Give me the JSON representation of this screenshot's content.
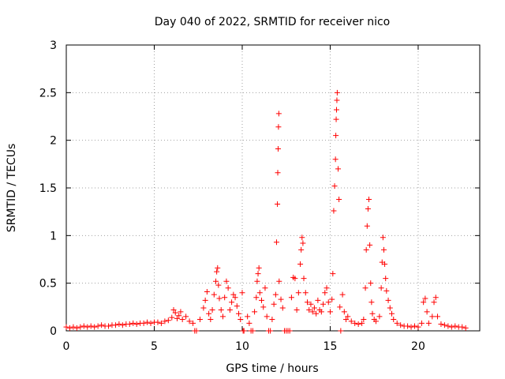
{
  "chart_data": {
    "type": "scatter",
    "title": "Day 040 of 2022, SRMTID for receiver nico",
    "xlabel": "GPS time / hours",
    "ylabel": "SRMTID / TECUs",
    "xlim": [
      0,
      23.5
    ],
    "ylim": [
      0,
      3
    ],
    "xticks": [
      0,
      5,
      10,
      15,
      20
    ],
    "yticks": [
      0,
      0.5,
      1,
      1.5,
      2,
      2.5,
      3
    ],
    "xtick_labels": [
      "0",
      "5",
      "10",
      "15",
      "20"
    ],
    "ytick_labels": [
      "0",
      "0.5",
      "1",
      "1.5",
      "2",
      "2.5",
      "3"
    ],
    "grid": true,
    "marker": "+",
    "color": "#ff0000",
    "series": [
      {
        "name": "SRMTID",
        "points": [
          [
            0.0,
            0.04
          ],
          [
            0.2,
            0.03
          ],
          [
            0.4,
            0.04
          ],
          [
            0.6,
            0.03
          ],
          [
            0.8,
            0.04
          ],
          [
            1.0,
            0.05
          ],
          [
            1.2,
            0.04
          ],
          [
            1.4,
            0.05
          ],
          [
            1.6,
            0.04
          ],
          [
            1.8,
            0.05
          ],
          [
            2.0,
            0.06
          ],
          [
            2.2,
            0.05
          ],
          [
            2.4,
            0.05
          ],
          [
            2.6,
            0.06
          ],
          [
            2.8,
            0.06
          ],
          [
            3.0,
            0.07
          ],
          [
            3.2,
            0.06
          ],
          [
            3.4,
            0.07
          ],
          [
            3.6,
            0.07
          ],
          [
            3.8,
            0.08
          ],
          [
            4.0,
            0.07
          ],
          [
            4.2,
            0.08
          ],
          [
            4.4,
            0.08
          ],
          [
            4.6,
            0.09
          ],
          [
            4.8,
            0.08
          ],
          [
            5.0,
            0.09
          ],
          [
            5.2,
            0.09
          ],
          [
            5.4,
            0.08
          ],
          [
            5.6,
            0.1
          ],
          [
            5.8,
            0.11
          ],
          [
            6.0,
            0.14
          ],
          [
            6.1,
            0.22
          ],
          [
            6.2,
            0.19
          ],
          [
            6.3,
            0.13
          ],
          [
            6.4,
            0.16
          ],
          [
            6.5,
            0.2
          ],
          [
            6.6,
            0.12
          ],
          [
            6.8,
            0.15
          ],
          [
            7.0,
            0.1
          ],
          [
            7.2,
            0.08
          ],
          [
            7.3,
            0.0
          ],
          [
            7.4,
            0.0
          ],
          [
            7.6,
            0.12
          ],
          [
            7.8,
            0.24
          ],
          [
            7.9,
            0.32
          ],
          [
            8.0,
            0.41
          ],
          [
            8.1,
            0.18
          ],
          [
            8.2,
            0.12
          ],
          [
            8.3,
            0.22
          ],
          [
            8.4,
            0.38
          ],
          [
            8.5,
            0.52
          ],
          [
            8.55,
            0.62
          ],
          [
            8.6,
            0.66
          ],
          [
            8.65,
            0.48
          ],
          [
            8.7,
            0.34
          ],
          [
            8.8,
            0.22
          ],
          [
            8.9,
            0.15
          ],
          [
            9.0,
            0.35
          ],
          [
            9.1,
            0.52
          ],
          [
            9.2,
            0.45
          ],
          [
            9.3,
            0.22
          ],
          [
            9.4,
            0.3
          ],
          [
            9.5,
            0.38
          ],
          [
            9.6,
            0.35
          ],
          [
            9.7,
            0.26
          ],
          [
            9.8,
            0.18
          ],
          [
            9.9,
            0.12
          ],
          [
            10.0,
            0.4
          ],
          [
            10.05,
            0.0
          ],
          [
            10.1,
            0.0
          ],
          [
            10.3,
            0.15
          ],
          [
            10.4,
            0.08
          ],
          [
            10.5,
            0.0
          ],
          [
            10.6,
            0.0
          ],
          [
            10.7,
            0.2
          ],
          [
            10.8,
            0.35
          ],
          [
            10.85,
            0.52
          ],
          [
            10.9,
            0.6
          ],
          [
            10.95,
            0.66
          ],
          [
            11.0,
            0.4
          ],
          [
            11.1,
            0.32
          ],
          [
            11.2,
            0.25
          ],
          [
            11.3,
            0.45
          ],
          [
            11.4,
            0.15
          ],
          [
            11.5,
            0.0
          ],
          [
            11.6,
            0.0
          ],
          [
            11.7,
            0.12
          ],
          [
            11.8,
            0.28
          ],
          [
            11.9,
            0.38
          ],
          [
            11.95,
            0.93
          ],
          [
            12.0,
            1.33
          ],
          [
            12.02,
            1.66
          ],
          [
            12.04,
            1.91
          ],
          [
            12.06,
            2.14
          ],
          [
            12.08,
            2.28
          ],
          [
            12.1,
            0.52
          ],
          [
            12.2,
            0.33
          ],
          [
            12.3,
            0.24
          ],
          [
            12.4,
            0.0
          ],
          [
            12.5,
            0.0
          ],
          [
            12.6,
            0.0
          ],
          [
            12.7,
            0.0
          ],
          [
            12.8,
            0.35
          ],
          [
            12.9,
            0.56
          ],
          [
            13.0,
            0.55
          ],
          [
            13.1,
            0.22
          ],
          [
            13.2,
            0.4
          ],
          [
            13.3,
            0.7
          ],
          [
            13.35,
            0.85
          ],
          [
            13.4,
            0.98
          ],
          [
            13.45,
            0.92
          ],
          [
            13.5,
            0.55
          ],
          [
            13.6,
            0.4
          ],
          [
            13.7,
            0.3
          ],
          [
            13.8,
            0.22
          ],
          [
            13.9,
            0.28
          ],
          [
            14.0,
            0.2
          ],
          [
            14.1,
            0.24
          ],
          [
            14.2,
            0.18
          ],
          [
            14.3,
            0.32
          ],
          [
            14.4,
            0.22
          ],
          [
            14.5,
            0.2
          ],
          [
            14.6,
            0.28
          ],
          [
            14.7,
            0.4
          ],
          [
            14.8,
            0.45
          ],
          [
            14.9,
            0.3
          ],
          [
            15.0,
            0.2
          ],
          [
            15.1,
            0.33
          ],
          [
            15.15,
            0.6
          ],
          [
            15.2,
            1.26
          ],
          [
            15.25,
            1.52
          ],
          [
            15.3,
            1.8
          ],
          [
            15.32,
            2.05
          ],
          [
            15.34,
            2.22
          ],
          [
            15.36,
            2.32
          ],
          [
            15.38,
            2.42
          ],
          [
            15.4,
            2.5
          ],
          [
            15.45,
            1.7
          ],
          [
            15.5,
            1.38
          ],
          [
            15.55,
            0.25
          ],
          [
            15.6,
            0.0
          ],
          [
            15.7,
            0.38
          ],
          [
            15.8,
            0.2
          ],
          [
            15.9,
            0.12
          ],
          [
            16.0,
            0.15
          ],
          [
            16.2,
            0.1
          ],
          [
            16.4,
            0.08
          ],
          [
            16.6,
            0.07
          ],
          [
            16.8,
            0.08
          ],
          [
            16.9,
            0.12
          ],
          [
            17.0,
            0.45
          ],
          [
            17.05,
            0.85
          ],
          [
            17.1,
            1.1
          ],
          [
            17.15,
            1.28
          ],
          [
            17.2,
            1.38
          ],
          [
            17.25,
            0.9
          ],
          [
            17.3,
            0.5
          ],
          [
            17.35,
            0.3
          ],
          [
            17.4,
            0.18
          ],
          [
            17.5,
            0.12
          ],
          [
            17.6,
            0.1
          ],
          [
            17.8,
            0.15
          ],
          [
            17.9,
            0.45
          ],
          [
            17.95,
            0.72
          ],
          [
            18.0,
            0.98
          ],
          [
            18.05,
            0.85
          ],
          [
            18.1,
            0.7
          ],
          [
            18.15,
            0.55
          ],
          [
            18.2,
            0.42
          ],
          [
            18.3,
            0.32
          ],
          [
            18.4,
            0.24
          ],
          [
            18.5,
            0.18
          ],
          [
            18.6,
            0.12
          ],
          [
            18.8,
            0.08
          ],
          [
            19.0,
            0.06
          ],
          [
            19.2,
            0.05
          ],
          [
            19.4,
            0.05
          ],
          [
            19.6,
            0.04
          ],
          [
            19.8,
            0.05
          ],
          [
            20.0,
            0.04
          ],
          [
            20.2,
            0.08
          ],
          [
            20.3,
            0.3
          ],
          [
            20.4,
            0.34
          ],
          [
            20.5,
            0.2
          ],
          [
            20.6,
            0.08
          ],
          [
            20.8,
            0.15
          ],
          [
            20.9,
            0.3
          ],
          [
            21.0,
            0.35
          ],
          [
            21.1,
            0.15
          ],
          [
            21.3,
            0.07
          ],
          [
            21.5,
            0.06
          ],
          [
            21.7,
            0.05
          ],
          [
            21.9,
            0.04
          ],
          [
            22.1,
            0.05
          ],
          [
            22.3,
            0.04
          ],
          [
            22.5,
            0.04
          ],
          [
            22.7,
            0.03
          ]
        ]
      }
    ]
  }
}
